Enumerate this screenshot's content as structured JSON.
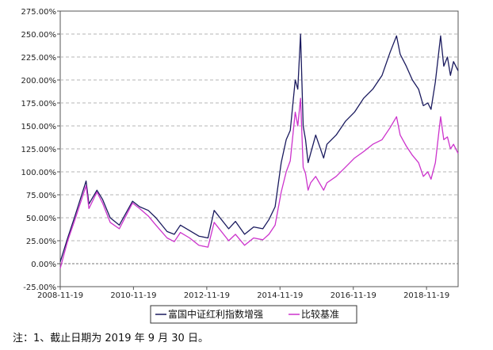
{
  "chart_data": {
    "type": "line",
    "title": "",
    "xlabel": "",
    "ylabel": "",
    "ylim": [
      -25,
      275
    ],
    "y_ticks": [
      -25,
      0,
      25,
      50,
      75,
      100,
      125,
      150,
      175,
      200,
      225,
      250,
      275
    ],
    "y_tick_labels": [
      "-25.00%",
      "0.00%",
      "25.00%",
      "50.00%",
      "75.00%",
      "100.00%",
      "125.00%",
      "150.00%",
      "175.00%",
      "200.00%",
      "225.00%",
      "250.00%",
      "275.00%"
    ],
    "xlim": [
      "2008-11-19",
      "2019-09-30"
    ],
    "x_tick_labels": [
      "2008-11-19",
      "2010-11-19",
      "2012-11-19",
      "2014-11-19",
      "2016-11-19",
      "2018-11-19"
    ],
    "grid": "horizontal-dashed",
    "legend": "bottom-center",
    "series": [
      {
        "name": "富国中证红利指数增强",
        "color": "#1a1a5e",
        "x": [
          "2008-11-19",
          "2009-02-01",
          "2009-04-15",
          "2009-08-04",
          "2009-09-01",
          "2009-11-20",
          "2010-01-15",
          "2010-04-01",
          "2010-07-01",
          "2010-11-10",
          "2011-01-20",
          "2011-04-15",
          "2011-07-01",
          "2011-10-20",
          "2011-12-31",
          "2012-03-01",
          "2012-06-01",
          "2012-09-01",
          "2012-12-01",
          "2013-02-01",
          "2013-06-25",
          "2013-09-01",
          "2013-12-01",
          "2014-03-01",
          "2014-06-01",
          "2014-08-01",
          "2014-10-01",
          "2014-12-01",
          "2015-01-20",
          "2015-03-01",
          "2015-04-20",
          "2015-05-15",
          "2015-06-12",
          "2015-07-08",
          "2015-08-01",
          "2015-08-26",
          "2015-09-20",
          "2015-11-10",
          "2016-01-28",
          "2016-03-01",
          "2016-06-01",
          "2016-09-01",
          "2016-12-01",
          "2017-03-01",
          "2017-06-01",
          "2017-09-01",
          "2017-11-20",
          "2018-01-24",
          "2018-03-01",
          "2018-05-01",
          "2018-07-01",
          "2018-09-01",
          "2018-10-18",
          "2018-12-01",
          "2019-01-03",
          "2019-02-15",
          "2019-04-08",
          "2019-05-10",
          "2019-06-15",
          "2019-07-15",
          "2019-08-15",
          "2019-09-30"
        ],
        "values": [
          2,
          28,
          52,
          90,
          65,
          80,
          70,
          50,
          42,
          68,
          62,
          58,
          50,
          35,
          32,
          42,
          36,
          30,
          28,
          58,
          38,
          46,
          32,
          40,
          38,
          48,
          62,
          110,
          135,
          145,
          200,
          190,
          250,
          150,
          135,
          110,
          120,
          140,
          115,
          130,
          140,
          155,
          165,
          180,
          190,
          205,
          230,
          248,
          228,
          215,
          200,
          190,
          172,
          175,
          168,
          198,
          248,
          215,
          225,
          205,
          220,
          210
        ]
      },
      {
        "name": "比较基准",
        "color": "#cc33cc",
        "x": [
          "2008-11-19",
          "2009-02-01",
          "2009-04-15",
          "2009-08-04",
          "2009-09-01",
          "2009-11-20",
          "2010-01-15",
          "2010-04-01",
          "2010-07-01",
          "2010-11-10",
          "2011-01-20",
          "2011-04-15",
          "2011-07-01",
          "2011-10-20",
          "2011-12-31",
          "2012-03-01",
          "2012-06-01",
          "2012-09-01",
          "2012-12-01",
          "2013-02-01",
          "2013-06-25",
          "2013-09-01",
          "2013-12-01",
          "2014-03-01",
          "2014-06-01",
          "2014-08-01",
          "2014-10-01",
          "2014-12-01",
          "2015-01-20",
          "2015-03-01",
          "2015-04-20",
          "2015-05-15",
          "2015-06-12",
          "2015-07-08",
          "2015-08-01",
          "2015-08-26",
          "2015-09-20",
          "2015-11-10",
          "2016-01-28",
          "2016-03-01",
          "2016-06-01",
          "2016-09-01",
          "2016-12-01",
          "2017-03-01",
          "2017-06-01",
          "2017-09-01",
          "2017-11-20",
          "2018-01-24",
          "2018-03-01",
          "2018-05-01",
          "2018-07-01",
          "2018-09-01",
          "2018-10-18",
          "2018-12-01",
          "2019-01-03",
          "2019-02-15",
          "2019-04-08",
          "2019-05-10",
          "2019-06-15",
          "2019-07-15",
          "2019-08-15",
          "2019-09-30"
        ],
        "values": [
          -5,
          25,
          48,
          85,
          60,
          78,
          66,
          45,
          38,
          66,
          60,
          52,
          42,
          28,
          24,
          34,
          28,
          20,
          18,
          45,
          25,
          32,
          20,
          28,
          26,
          32,
          42,
          78,
          100,
          112,
          165,
          150,
          180,
          105,
          98,
          80,
          88,
          95,
          80,
          88,
          95,
          105,
          115,
          122,
          130,
          135,
          148,
          160,
          140,
          128,
          118,
          110,
          95,
          100,
          92,
          110,
          160,
          135,
          138,
          125,
          130,
          120
        ]
      }
    ]
  },
  "note": "注：1、截止日期为 2019 年 9 月 30 日。"
}
